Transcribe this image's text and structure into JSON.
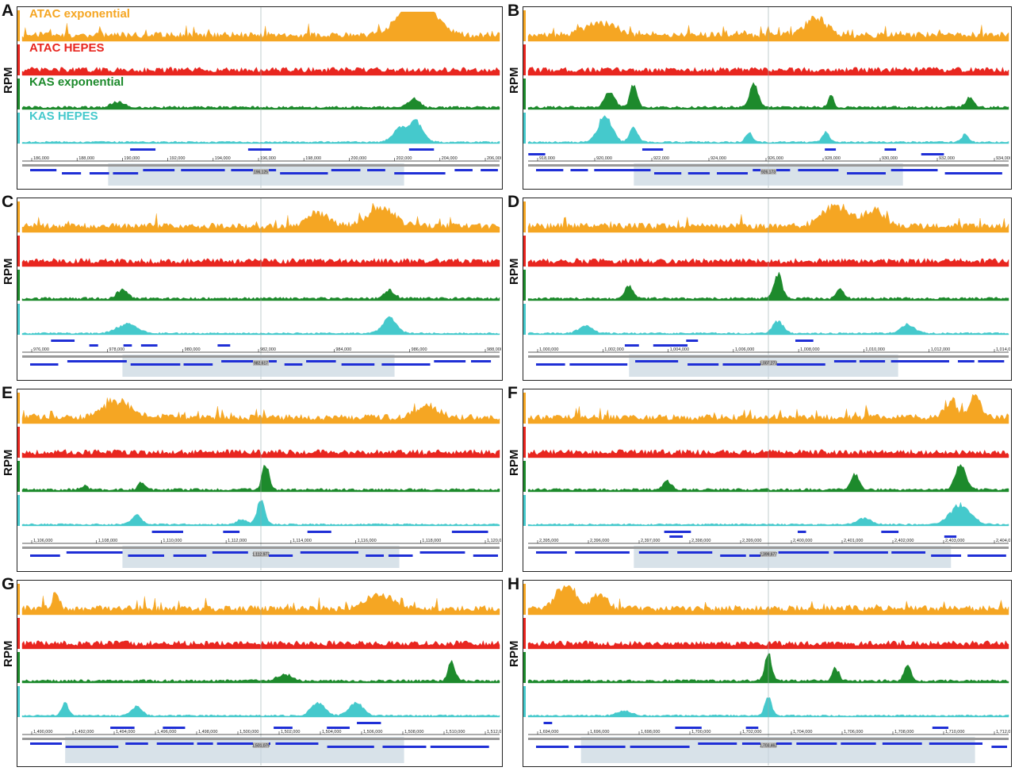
{
  "axis_label": "RPM",
  "legend": [
    {
      "label": "ATAC exponential",
      "color": "#f5a623"
    },
    {
      "label": "ATAC HEPES",
      "color": "#e8261f"
    },
    {
      "label": "KAS exponential",
      "color": "#1d8a2c"
    },
    {
      "label": "KAS HEPES",
      "color": "#45c9cc"
    }
  ],
  "colors": {
    "atac_exp": "#f5a623",
    "atac_hepes": "#e8261f",
    "kas_exp": "#1d8a2c",
    "kas_hepes": "#45c9cc",
    "gene": "#1f2fd6",
    "highlight": "#c7d5df"
  },
  "chart_data": [
    {
      "panel": "A",
      "type": "area",
      "tracks": [
        "ATAC exponential",
        "ATAC HEPES",
        "KAS exponential",
        "KAS HEPES"
      ],
      "genome_ticks": [
        "186,000",
        "188,000",
        "190,000",
        "192,000",
        "194,000",
        "196,000",
        "198,000",
        "200,000",
        "202,000",
        "204,000",
        "206,000"
      ],
      "center_label": "196,125",
      "highlight": [
        0.18,
        0.8
      ],
      "peaks": {
        "atac_exp": [
          [
            0.82,
            0.9,
            0.05
          ],
          [
            0.84,
            0.8,
            0.04
          ]
        ],
        "atac_hepes": [],
        "kas_exp": [
          [
            0.2,
            0.2,
            0.02
          ],
          [
            0.82,
            0.35,
            0.015
          ]
        ],
        "kas_hepes": [
          [
            0.79,
            0.5,
            0.02
          ],
          [
            0.825,
            0.8,
            0.02
          ]
        ]
      }
    },
    {
      "panel": "B",
      "type": "area",
      "tracks": [
        "ATAC exponential",
        "ATAC HEPES",
        "KAS exponential",
        "KAS HEPES"
      ],
      "genome_ticks": [
        "918,000",
        "920,000",
        "922,000",
        "924,000",
        "926,000",
        "928,000",
        "930,000",
        "932,000",
        "934,000"
      ],
      "center_label": "926,173",
      "highlight": [
        0.22,
        0.78
      ],
      "peaks": {
        "atac_exp": [
          [
            0.6,
            0.7,
            0.03
          ],
          [
            0.15,
            0.5,
            0.04
          ]
        ],
        "atac_hepes": [],
        "kas_exp": [
          [
            0.17,
            0.55,
            0.015
          ],
          [
            0.22,
            0.95,
            0.01
          ],
          [
            0.47,
            1.0,
            0.012
          ],
          [
            0.63,
            0.45,
            0.008
          ],
          [
            0.92,
            0.4,
            0.012
          ]
        ],
        "kas_hepes": [
          [
            0.16,
            1.0,
            0.02
          ],
          [
            0.22,
            0.6,
            0.012
          ],
          [
            0.46,
            0.35,
            0.01
          ],
          [
            0.62,
            0.4,
            0.01
          ],
          [
            0.91,
            0.3,
            0.01
          ]
        ]
      }
    },
    {
      "panel": "C",
      "type": "area",
      "tracks": [
        "ATAC exponential",
        "ATAC HEPES",
        "KAS exponential",
        "KAS HEPES"
      ],
      "genome_ticks": [
        "976,000",
        "978,000",
        "980,000",
        "982,000",
        "984,000",
        "986,000",
        "988,000"
      ],
      "center_label": "982,617",
      "highlight": [
        0.21,
        0.78
      ],
      "peaks": {
        "atac_exp": [
          [
            0.75,
            0.7,
            0.04
          ],
          [
            0.62,
            0.5,
            0.03
          ]
        ],
        "atac_hepes": [],
        "kas_exp": [
          [
            0.21,
            0.35,
            0.015
          ],
          [
            0.77,
            0.3,
            0.015
          ]
        ],
        "kas_hepes": [
          [
            0.22,
            0.35,
            0.03
          ],
          [
            0.77,
            0.6,
            0.02
          ]
        ]
      }
    },
    {
      "panel": "D",
      "type": "area",
      "tracks": [
        "ATAC exponential",
        "ATAC HEPES",
        "KAS exponential",
        "KAS HEPES"
      ],
      "genome_ticks": [
        "1,000,000",
        "1,002,000",
        "1,004,000",
        "1,006,000",
        "1,008,000",
        "1,010,000",
        "1,012,000",
        "1,014,000"
      ],
      "center_label": "1,007,273",
      "highlight": [
        0.21,
        0.77
      ],
      "peaks": {
        "atac_exp": [
          [
            0.64,
            0.8,
            0.04
          ],
          [
            0.72,
            0.6,
            0.03
          ]
        ],
        "atac_hepes": [],
        "kas_exp": [
          [
            0.21,
            0.5,
            0.012
          ],
          [
            0.52,
            0.9,
            0.012
          ],
          [
            0.65,
            0.4,
            0.01
          ]
        ],
        "kas_hepes": [
          [
            0.12,
            0.3,
            0.02
          ],
          [
            0.52,
            0.5,
            0.015
          ],
          [
            0.79,
            0.35,
            0.02
          ]
        ]
      }
    },
    {
      "panel": "E",
      "type": "area",
      "tracks": [
        "ATAC exponential",
        "ATAC HEPES",
        "KAS exponential",
        "KAS HEPES"
      ],
      "genome_ticks": [
        "1,106,000",
        "1,108,000",
        "1,110,000",
        "1,112,000",
        "1,114,000",
        "1,116,000",
        "1,118,000",
        "1,120,000"
      ],
      "center_label": "1,112,977",
      "highlight": [
        0.21,
        0.79
      ],
      "peaks": {
        "atac_exp": [
          [
            0.2,
            0.6,
            0.04
          ],
          [
            0.85,
            0.5,
            0.03
          ]
        ],
        "atac_hepes": [],
        "kas_exp": [
          [
            0.13,
            0.15,
            0.01
          ],
          [
            0.25,
            0.3,
            0.01
          ],
          [
            0.51,
            1.0,
            0.01
          ]
        ],
        "kas_hepes": [
          [
            0.24,
            0.35,
            0.015
          ],
          [
            0.5,
            0.9,
            0.012
          ],
          [
            0.46,
            0.2,
            0.015
          ]
        ]
      }
    },
    {
      "panel": "F",
      "type": "area",
      "tracks": [
        "ATAC exponential",
        "ATAC HEPES",
        "KAS exponential",
        "KAS HEPES"
      ],
      "genome_ticks": [
        "2,395,000",
        "2,396,000",
        "2,397,000",
        "2,398,000",
        "2,399,000",
        "2,400,000",
        "2,401,000",
        "2,402,000",
        "2,403,000",
        "2,404,000"
      ],
      "center_label": "2,399,677",
      "highlight": [
        0.22,
        0.88
      ],
      "peaks": {
        "atac_exp": [
          [
            0.93,
            0.9,
            0.015
          ],
          [
            0.88,
            0.5,
            0.02
          ]
        ],
        "atac_hepes": [],
        "kas_exp": [
          [
            0.29,
            0.35,
            0.012
          ],
          [
            0.68,
            0.6,
            0.012
          ],
          [
            0.9,
            1.0,
            0.015
          ]
        ],
        "kas_hepes": [
          [
            0.9,
            0.75,
            0.03
          ],
          [
            0.7,
            0.25,
            0.02
          ]
        ]
      }
    },
    {
      "panel": "G",
      "type": "area",
      "tracks": [
        "ATAC exponential",
        "ATAC HEPES",
        "KAS exponential",
        "KAS HEPES"
      ],
      "genome_ticks": [
        "1,490,000",
        "1,492,000",
        "1,494,000",
        "1,496,000",
        "1,498,000",
        "1,500,000",
        "1,502,000",
        "1,504,000",
        "1,506,000",
        "1,508,000",
        "1,510,000",
        "1,512,000"
      ],
      "center_label": "1,501,075",
      "highlight": [
        0.09,
        0.8
      ],
      "peaks": {
        "atac_exp": [
          [
            0.75,
            0.5,
            0.04
          ],
          [
            0.07,
            0.6,
            0.01
          ]
        ],
        "atac_hepes": [],
        "kas_exp": [
          [
            0.9,
            0.75,
            0.01
          ],
          [
            0.55,
            0.25,
            0.02
          ]
        ],
        "kas_hepes": [
          [
            0.62,
            0.5,
            0.02
          ],
          [
            0.7,
            0.5,
            0.02
          ],
          [
            0.24,
            0.35,
            0.015
          ],
          [
            0.09,
            0.5,
            0.01
          ]
        ]
      }
    },
    {
      "panel": "H",
      "type": "area",
      "tracks": [
        "ATAC exponential",
        "ATAC HEPES",
        "KAS exponential",
        "KAS HEPES"
      ],
      "genome_ticks": [
        "1,694,000",
        "1,696,000",
        "1,698,000",
        "1,700,000",
        "1,702,000",
        "1,704,000",
        "1,706,000",
        "1,708,000",
        "1,710,000",
        "1,712,000"
      ],
      "center_label": "1,703,462",
      "highlight": [
        0.11,
        0.93
      ],
      "peaks": {
        "atac_exp": [
          [
            0.08,
            0.9,
            0.03
          ],
          [
            0.15,
            0.6,
            0.02
          ]
        ],
        "atac_hepes": [],
        "kas_exp": [
          [
            0.5,
            1.0,
            0.01
          ],
          [
            0.64,
            0.5,
            0.01
          ],
          [
            0.79,
            0.6,
            0.01
          ]
        ],
        "kas_hepes": [
          [
            0.5,
            0.7,
            0.01
          ],
          [
            0.2,
            0.2,
            0.02
          ]
        ]
      }
    }
  ]
}
